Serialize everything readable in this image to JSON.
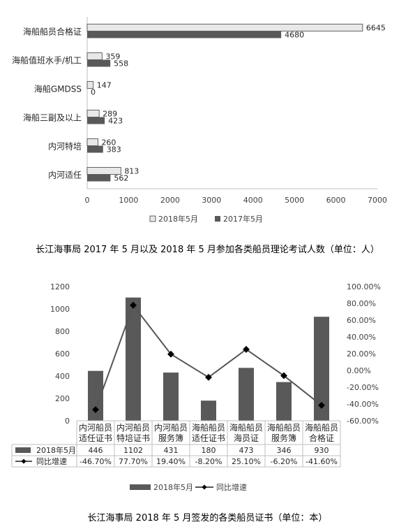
{
  "captions": {
    "chart1": "长江海事局 2017 年 5 月以及 2018 年 5 月参加各类船员理论考试人数（单位：人）",
    "chart2": "长江海事局 2018 年 5 月签发的各类船员证书（单位：本）"
  },
  "chart_data": [
    {
      "type": "bar",
      "orientation": "horizontal",
      "categories": [
        "海船船员合格证",
        "海船值班水手/机工",
        "海船GMDSS",
        "海船三副及以上",
        "内河特培",
        "内河适任"
      ],
      "series": [
        {
          "name": "2018年5月",
          "values": [
            6645,
            359,
            147,
            289,
            260,
            813
          ],
          "color": "#e8e8e8"
        },
        {
          "name": "2017年5月",
          "values": [
            4680,
            558,
            0,
            423,
            383,
            562
          ],
          "color": "#595959"
        }
      ],
      "xlim": [
        0,
        7000
      ],
      "xticks": [
        0,
        1000,
        2000,
        3000,
        4000,
        5000,
        6000,
        7000
      ],
      "legend": "bottom",
      "grid": false
    },
    {
      "type": "bar+line",
      "categories": [
        [
          "内河船员",
          "适任证书"
        ],
        [
          "内河船员",
          "特培证书"
        ],
        [
          "内河船员",
          "服务簿"
        ],
        [
          "海船船员",
          "适任证书"
        ],
        [
          "海船船员",
          "海员证"
        ],
        [
          "海船船员",
          "服务簿"
        ],
        [
          "海船船员",
          "合格证"
        ]
      ],
      "series": [
        {
          "name": "2018年5月",
          "type": "bar",
          "axis": "left",
          "values": [
            446,
            1102,
            431,
            180,
            473,
            346,
            930
          ],
          "labels": [
            "446",
            "1102",
            "431",
            "180",
            "473",
            "346",
            "930"
          ],
          "color": "#595959"
        },
        {
          "name": "同比增速",
          "type": "line",
          "axis": "right",
          "values": [
            -46.7,
            77.7,
            19.4,
            -8.2,
            25.1,
            -6.2,
            -41.6
          ],
          "labels": [
            "-46.70%",
            "77.70%",
            "19.40%",
            "-8.20%",
            "25.10%",
            "-6.20%",
            "-41.60%"
          ],
          "color": "#555555"
        }
      ],
      "ylim_left": [
        0,
        1200
      ],
      "yticks_left": [
        "0",
        "200",
        "400",
        "600",
        "800",
        "1000",
        "1200"
      ],
      "ylim_right": [
        -60,
        100
      ],
      "yticks_right": [
        "-60.00%",
        "-40.00%",
        "-20.00%",
        "0.00%",
        "20.00%",
        "40.00%",
        "60.00%",
        "80.00%",
        "100.00%"
      ],
      "data_table": true,
      "legend": "bottom",
      "grid": false
    }
  ]
}
